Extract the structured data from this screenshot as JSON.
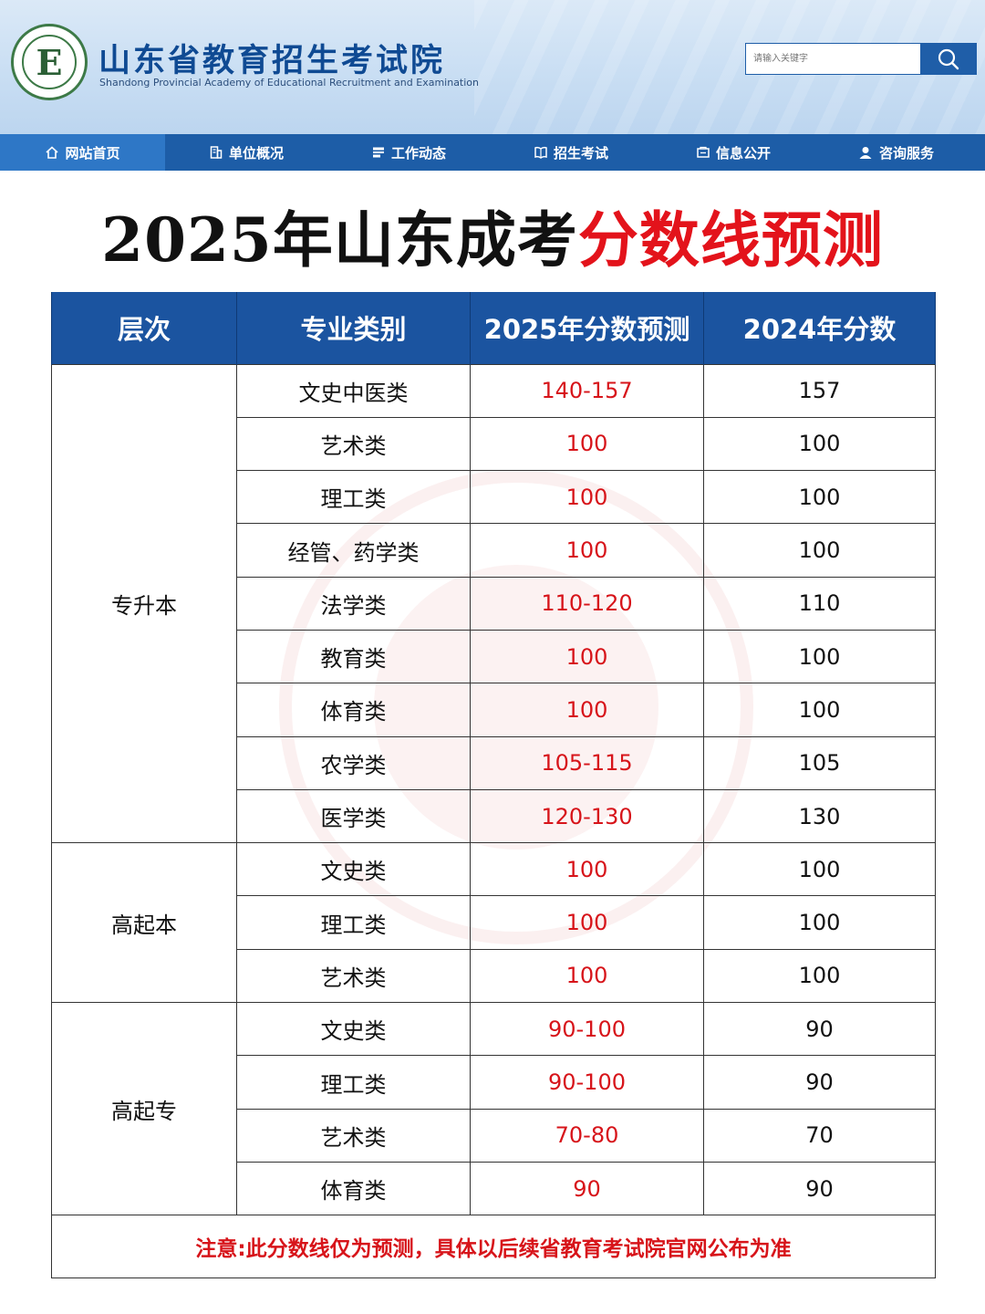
{
  "header": {
    "site_title": "山东省教育招生考试院",
    "site_subtitle": "Shandong Provincial Academy of Educational Recruitment and Examination",
    "logo_letter": "E",
    "search_placeholder": "请输入关键字"
  },
  "nav": {
    "items": [
      {
        "label": "网站首页",
        "icon": "home-icon"
      },
      {
        "label": "单位概况",
        "icon": "building-icon"
      },
      {
        "label": "工作动态",
        "icon": "news-icon"
      },
      {
        "label": "招生考试",
        "icon": "book-icon"
      },
      {
        "label": "信息公开",
        "icon": "info-box-icon"
      },
      {
        "label": "咨询服务",
        "icon": "user-service-icon"
      }
    ]
  },
  "headline": {
    "black": "2025年山东成考",
    "red": "分数线预测"
  },
  "table": {
    "headers": [
      "层次",
      "专业类别",
      "2025年分数预测",
      "2024年分数"
    ],
    "groups": [
      {
        "level": "专升本",
        "rows": [
          {
            "category": "文史中医类",
            "predicted": "140-157",
            "last_year": "157"
          },
          {
            "category": "艺术类",
            "predicted": "100",
            "last_year": "100"
          },
          {
            "category": "理工类",
            "predicted": "100",
            "last_year": "100"
          },
          {
            "category": "经管、药学类",
            "predicted": "100",
            "last_year": "100"
          },
          {
            "category": "法学类",
            "predicted": "110-120",
            "last_year": "110"
          },
          {
            "category": "教育类",
            "predicted": "100",
            "last_year": "100"
          },
          {
            "category": "体育类",
            "predicted": "100",
            "last_year": "100"
          },
          {
            "category": "农学类",
            "predicted": "105-115",
            "last_year": "105"
          },
          {
            "category": "医学类",
            "predicted": "120-130",
            "last_year": "130"
          }
        ]
      },
      {
        "level": "高起本",
        "rows": [
          {
            "category": "文史类",
            "predicted": "100",
            "last_year": "100"
          },
          {
            "category": "理工类",
            "predicted": "100",
            "last_year": "100"
          },
          {
            "category": "艺术类",
            "predicted": "100",
            "last_year": "100"
          }
        ]
      },
      {
        "level": "高起专",
        "rows": [
          {
            "category": "文史类",
            "predicted": "90-100",
            "last_year": "90"
          },
          {
            "category": "理工类",
            "predicted": "90-100",
            "last_year": "90"
          },
          {
            "category": "艺术类",
            "predicted": "70-80",
            "last_year": "70"
          },
          {
            "category": "体育类",
            "predicted": "90",
            "last_year": "90"
          }
        ]
      }
    ],
    "note": "注意:此分数线仅为预测，具体以后续省教育考试院官网公布为准"
  },
  "colors": {
    "nav_bg": "#1d5da7",
    "nav_active": "#2e77c6",
    "table_header": "#1b54a0",
    "accent_red": "#d7141a"
  }
}
